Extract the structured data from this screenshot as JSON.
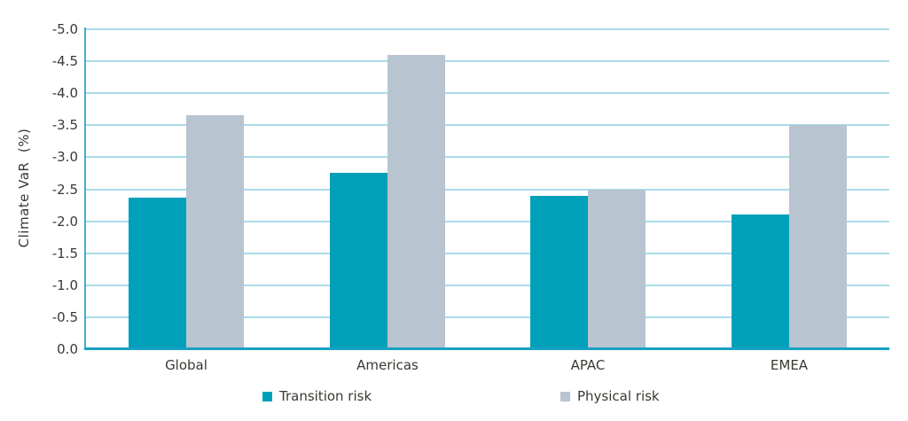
{
  "chart_data": {
    "type": "bar",
    "title": "",
    "ylabel": "Climate VaR  (%)",
    "xlabel": "",
    "categories": [
      "Global",
      "Americas",
      "APAC",
      "EMEA"
    ],
    "series": [
      {
        "name": "Transition risk",
        "color": "#00A0BB",
        "values": [
          -2.37,
          -2.75,
          -2.4,
          -2.1
        ]
      },
      {
        "name": "Physical risk",
        "color": "#B8C4D0",
        "values": [
          -3.65,
          -4.6,
          -2.5,
          -3.5
        ]
      }
    ],
    "y_axis": {
      "inverted": true,
      "min": 0.0,
      "max": -5.0,
      "step": 0.5,
      "tick_labels": [
        "-5.0",
        "-4.5",
        "-4.0",
        "-3.5",
        "-3.0",
        "-2.5",
        "-2.0",
        "-1.5",
        "-1.0",
        "-0.5",
        "0.0"
      ]
    },
    "grid": true,
    "legend": {
      "position": "bottom",
      "entries": [
        "Transition risk",
        "Physical risk"
      ]
    },
    "colors": {
      "gridline": "#A8DDE9",
      "axis_left": "#44AECB",
      "axis_bottom": "#17A1C4",
      "text": "#3C3833",
      "background": "#FFFFFF"
    }
  }
}
